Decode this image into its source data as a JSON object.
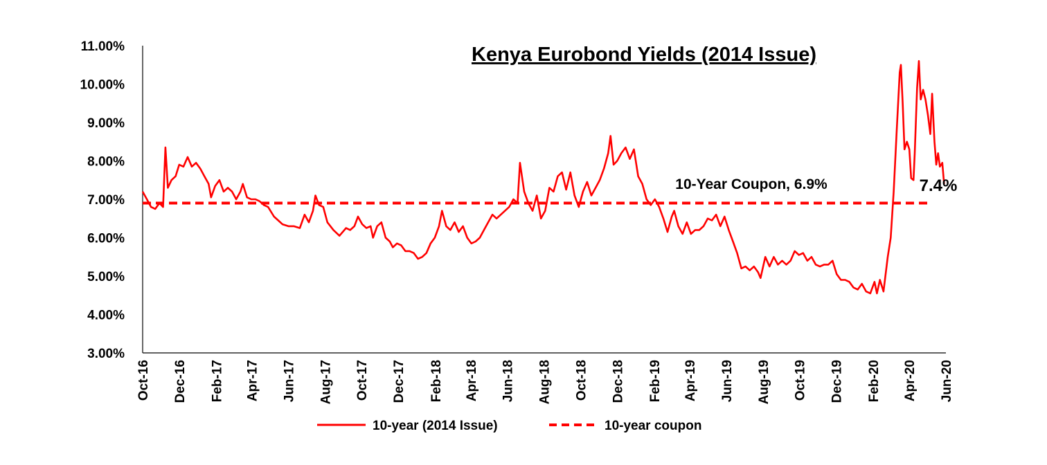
{
  "chart_data": {
    "type": "line",
    "title": "Kenya Eurobond Yields (2014 Issue)",
    "y_axis": {
      "min": 3.0,
      "max": 11.0,
      "step": 1.0,
      "tick_labels": [
        "3.00%",
        "4.00%",
        "5.00%",
        "6.00%",
        "7.00%",
        "8.00%",
        "9.00%",
        "10.00%",
        "11.00%"
      ]
    },
    "x_axis": {
      "start": "2016-10-01",
      "end": "2020-06-01",
      "tick_labels": [
        "Oct-16",
        "Dec-16",
        "Feb-17",
        "Apr-17",
        "Jun-17",
        "Aug-17",
        "Oct-17",
        "Dec-17",
        "Feb-18",
        "Apr-18",
        "Jun-18",
        "Aug-18",
        "Oct-18",
        "Dec-18",
        "Feb-19",
        "Apr-19",
        "Jun-19",
        "Aug-19",
        "Oct-19",
        "Dec-19",
        "Feb-20",
        "Apr-20",
        "Jun-20"
      ]
    },
    "series": [
      {
        "name": "10-year (2014 Issue)",
        "style": "solid",
        "color": "#FF0000",
        "points": [
          [
            "2016-10-01",
            7.2
          ],
          [
            "2016-10-08",
            7.0
          ],
          [
            "2016-10-15",
            6.8
          ],
          [
            "2016-10-22",
            6.75
          ],
          [
            "2016-10-29",
            6.9
          ],
          [
            "2016-11-04",
            6.8
          ],
          [
            "2016-11-08",
            8.35
          ],
          [
            "2016-11-12",
            7.3
          ],
          [
            "2016-11-18",
            7.5
          ],
          [
            "2016-11-25",
            7.6
          ],
          [
            "2016-12-01",
            7.9
          ],
          [
            "2016-12-08",
            7.85
          ],
          [
            "2016-12-15",
            8.1
          ],
          [
            "2016-12-22",
            7.85
          ],
          [
            "2016-12-29",
            7.95
          ],
          [
            "2017-01-05",
            7.8
          ],
          [
            "2017-01-12",
            7.6
          ],
          [
            "2017-01-19",
            7.4
          ],
          [
            "2017-01-23",
            7.05
          ],
          [
            "2017-01-30",
            7.35
          ],
          [
            "2017-02-06",
            7.5
          ],
          [
            "2017-02-13",
            7.2
          ],
          [
            "2017-02-20",
            7.3
          ],
          [
            "2017-02-27",
            7.2
          ],
          [
            "2017-03-06",
            7.0
          ],
          [
            "2017-03-13",
            7.2
          ],
          [
            "2017-03-17",
            7.4
          ],
          [
            "2017-03-24",
            7.05
          ],
          [
            "2017-03-31",
            7.0
          ],
          [
            "2017-04-07",
            7.0
          ],
          [
            "2017-04-14",
            6.95
          ],
          [
            "2017-04-21",
            6.85
          ],
          [
            "2017-04-28",
            6.8
          ],
          [
            "2017-05-08",
            6.55
          ],
          [
            "2017-05-15",
            6.45
          ],
          [
            "2017-05-22",
            6.35
          ],
          [
            "2017-06-01",
            6.3
          ],
          [
            "2017-06-10",
            6.3
          ],
          [
            "2017-06-20",
            6.25
          ],
          [
            "2017-06-28",
            6.6
          ],
          [
            "2017-07-05",
            6.4
          ],
          [
            "2017-07-12",
            6.7
          ],
          [
            "2017-07-16",
            7.1
          ],
          [
            "2017-07-22",
            6.85
          ],
          [
            "2017-07-29",
            6.8
          ],
          [
            "2017-08-05",
            6.4
          ],
          [
            "2017-08-15",
            6.2
          ],
          [
            "2017-08-25",
            6.05
          ],
          [
            "2017-09-05",
            6.25
          ],
          [
            "2017-09-12",
            6.2
          ],
          [
            "2017-09-19",
            6.3
          ],
          [
            "2017-09-25",
            6.55
          ],
          [
            "2017-10-02",
            6.35
          ],
          [
            "2017-10-09",
            6.25
          ],
          [
            "2017-10-16",
            6.3
          ],
          [
            "2017-10-20",
            6.0
          ],
          [
            "2017-10-27",
            6.3
          ],
          [
            "2017-11-03",
            6.4
          ],
          [
            "2017-11-10",
            6.0
          ],
          [
            "2017-11-17",
            5.9
          ],
          [
            "2017-11-22",
            5.75
          ],
          [
            "2017-11-29",
            5.85
          ],
          [
            "2017-12-06",
            5.8
          ],
          [
            "2017-12-13",
            5.65
          ],
          [
            "2017-12-20",
            5.65
          ],
          [
            "2017-12-27",
            5.6
          ],
          [
            "2018-01-03",
            5.45
          ],
          [
            "2018-01-10",
            5.5
          ],
          [
            "2018-01-17",
            5.6
          ],
          [
            "2018-01-24",
            5.85
          ],
          [
            "2018-01-31",
            6.0
          ],
          [
            "2018-02-07",
            6.3
          ],
          [
            "2018-02-12",
            6.7
          ],
          [
            "2018-02-19",
            6.3
          ],
          [
            "2018-02-26",
            6.2
          ],
          [
            "2018-03-05",
            6.4
          ],
          [
            "2018-03-12",
            6.15
          ],
          [
            "2018-03-19",
            6.3
          ],
          [
            "2018-03-26",
            6.0
          ],
          [
            "2018-04-02",
            5.85
          ],
          [
            "2018-04-09",
            5.9
          ],
          [
            "2018-04-16",
            6.0
          ],
          [
            "2018-04-23",
            6.2
          ],
          [
            "2018-04-30",
            6.4
          ],
          [
            "2018-05-07",
            6.6
          ],
          [
            "2018-05-14",
            6.5
          ],
          [
            "2018-05-21",
            6.6
          ],
          [
            "2018-05-28",
            6.7
          ],
          [
            "2018-06-04",
            6.8
          ],
          [
            "2018-06-11",
            7.0
          ],
          [
            "2018-06-18",
            6.9
          ],
          [
            "2018-06-22",
            7.95
          ],
          [
            "2018-06-29",
            7.2
          ],
          [
            "2018-07-06",
            6.9
          ],
          [
            "2018-07-13",
            6.7
          ],
          [
            "2018-07-20",
            7.1
          ],
          [
            "2018-07-27",
            6.5
          ],
          [
            "2018-08-03",
            6.7
          ],
          [
            "2018-08-10",
            7.3
          ],
          [
            "2018-08-17",
            7.2
          ],
          [
            "2018-08-24",
            7.6
          ],
          [
            "2018-08-31",
            7.7
          ],
          [
            "2018-09-07",
            7.25
          ],
          [
            "2018-09-14",
            7.7
          ],
          [
            "2018-09-21",
            7.1
          ],
          [
            "2018-09-28",
            6.8
          ],
          [
            "2018-10-05",
            7.2
          ],
          [
            "2018-10-12",
            7.45
          ],
          [
            "2018-10-19",
            7.1
          ],
          [
            "2018-10-26",
            7.3
          ],
          [
            "2018-11-02",
            7.5
          ],
          [
            "2018-11-09",
            7.8
          ],
          [
            "2018-11-16",
            8.2
          ],
          [
            "2018-11-20",
            8.65
          ],
          [
            "2018-11-25",
            7.9
          ],
          [
            "2018-12-01",
            8.0
          ],
          [
            "2018-12-08",
            8.2
          ],
          [
            "2018-12-15",
            8.35
          ],
          [
            "2018-12-22",
            8.05
          ],
          [
            "2018-12-29",
            8.3
          ],
          [
            "2019-01-05",
            7.6
          ],
          [
            "2019-01-12",
            7.4
          ],
          [
            "2019-01-19",
            7.0
          ],
          [
            "2019-01-26",
            6.85
          ],
          [
            "2019-02-02",
            7.0
          ],
          [
            "2019-02-09",
            6.8
          ],
          [
            "2019-02-16",
            6.5
          ],
          [
            "2019-02-23",
            6.15
          ],
          [
            "2019-03-02",
            6.55
          ],
          [
            "2019-03-06",
            6.7
          ],
          [
            "2019-03-13",
            6.3
          ],
          [
            "2019-03-20",
            6.1
          ],
          [
            "2019-03-27",
            6.4
          ],
          [
            "2019-04-03",
            6.1
          ],
          [
            "2019-04-10",
            6.2
          ],
          [
            "2019-04-17",
            6.2
          ],
          [
            "2019-04-24",
            6.3
          ],
          [
            "2019-05-01",
            6.5
          ],
          [
            "2019-05-08",
            6.45
          ],
          [
            "2019-05-15",
            6.6
          ],
          [
            "2019-05-22",
            6.3
          ],
          [
            "2019-05-29",
            6.55
          ],
          [
            "2019-06-05",
            6.2
          ],
          [
            "2019-06-12",
            5.9
          ],
          [
            "2019-06-19",
            5.6
          ],
          [
            "2019-06-26",
            5.2
          ],
          [
            "2019-07-03",
            5.25
          ],
          [
            "2019-07-10",
            5.15
          ],
          [
            "2019-07-17",
            5.25
          ],
          [
            "2019-07-24",
            5.1
          ],
          [
            "2019-07-28",
            4.95
          ],
          [
            "2019-08-05",
            5.5
          ],
          [
            "2019-08-12",
            5.25
          ],
          [
            "2019-08-19",
            5.5
          ],
          [
            "2019-08-26",
            5.3
          ],
          [
            "2019-09-02",
            5.4
          ],
          [
            "2019-09-09",
            5.3
          ],
          [
            "2019-09-16",
            5.4
          ],
          [
            "2019-09-23",
            5.65
          ],
          [
            "2019-09-30",
            5.55
          ],
          [
            "2019-10-07",
            5.6
          ],
          [
            "2019-10-14",
            5.4
          ],
          [
            "2019-10-21",
            5.5
          ],
          [
            "2019-10-28",
            5.3
          ],
          [
            "2019-11-04",
            5.25
          ],
          [
            "2019-11-11",
            5.3
          ],
          [
            "2019-11-18",
            5.3
          ],
          [
            "2019-11-25",
            5.4
          ],
          [
            "2019-12-02",
            5.05
          ],
          [
            "2019-12-09",
            4.9
          ],
          [
            "2019-12-16",
            4.9
          ],
          [
            "2019-12-23",
            4.85
          ],
          [
            "2019-12-30",
            4.7
          ],
          [
            "2020-01-06",
            4.65
          ],
          [
            "2020-01-13",
            4.8
          ],
          [
            "2020-01-20",
            4.6
          ],
          [
            "2020-01-27",
            4.55
          ],
          [
            "2020-02-03",
            4.85
          ],
          [
            "2020-02-07",
            4.55
          ],
          [
            "2020-02-12",
            4.9
          ],
          [
            "2020-02-18",
            4.6
          ],
          [
            "2020-02-25",
            5.5
          ],
          [
            "2020-03-01",
            6.0
          ],
          [
            "2020-03-06",
            7.2
          ],
          [
            "2020-03-11",
            8.8
          ],
          [
            "2020-03-16",
            10.3
          ],
          [
            "2020-03-18",
            10.5
          ],
          [
            "2020-03-21",
            9.5
          ],
          [
            "2020-03-24",
            8.3
          ],
          [
            "2020-03-28",
            8.5
          ],
          [
            "2020-04-01",
            8.3
          ],
          [
            "2020-04-04",
            7.55
          ],
          [
            "2020-04-08",
            7.5
          ],
          [
            "2020-04-10",
            8.2
          ],
          [
            "2020-04-14",
            9.9
          ],
          [
            "2020-04-17",
            10.6
          ],
          [
            "2020-04-20",
            9.6
          ],
          [
            "2020-04-24",
            9.85
          ],
          [
            "2020-04-28",
            9.6
          ],
          [
            "2020-05-02",
            9.2
          ],
          [
            "2020-05-06",
            8.7
          ],
          [
            "2020-05-09",
            9.75
          ],
          [
            "2020-05-13",
            8.5
          ],
          [
            "2020-05-16",
            7.9
          ],
          [
            "2020-05-19",
            8.2
          ],
          [
            "2020-05-22",
            7.85
          ],
          [
            "2020-05-26",
            7.95
          ],
          [
            "2020-05-29",
            7.4
          ]
        ]
      },
      {
        "name": "10-year coupon",
        "style": "dashed",
        "color": "#FF0000",
        "points": [
          [
            "2016-10-01",
            6.9
          ],
          [
            "2020-06-01",
            6.9
          ]
        ]
      }
    ],
    "annotations": [
      {
        "text": "10-Year Coupon, 6.9%",
        "x": "2019-01-20",
        "y": 6.9
      },
      {
        "text": "7.4%",
        "x": "2020-05-29",
        "y": 7.4
      }
    ],
    "legend": {
      "position": "bottom",
      "entries": [
        "10-year (2014 Issue)",
        "10-year coupon"
      ]
    },
    "grid": false
  }
}
